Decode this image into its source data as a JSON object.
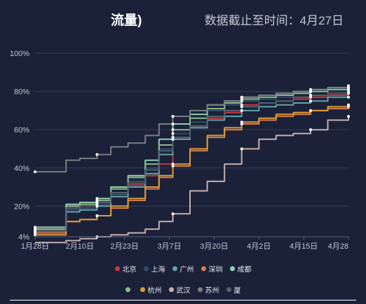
{
  "header": {
    "title": "流量)",
    "as_of": "数据截止至时间：4月27日"
  },
  "chart_data": {
    "type": "line",
    "title": "流量)",
    "ylim": [
      4,
      100
    ],
    "yticks": [
      4,
      20,
      40,
      60,
      80,
      100
    ],
    "ytick_labels": [
      "4%",
      "20%",
      "40%",
      "60%",
      "80%",
      "100%"
    ],
    "x_range": [
      "1月28日",
      "4月28日"
    ],
    "xtick_labels": [
      "1月28日",
      "2月10日",
      "2月23日",
      "3月7日",
      "3月20日",
      "4月2日",
      "4月15日",
      "4月28"
    ],
    "grid": "horizontal",
    "legend_position": "bottom",
    "x_day_points": [
      0,
      4,
      9,
      13,
      18,
      22,
      27,
      32,
      36,
      40,
      45,
      50,
      55,
      60,
      65,
      70,
      75,
      80,
      85,
      91
    ],
    "series": [
      {
        "name": "北京",
        "color": "#c8393f",
        "values": [
          8,
          8,
          20,
          21,
          22,
          27,
          31,
          36,
          42,
          55,
          61,
          66,
          69,
          73,
          74,
          75,
          76,
          77,
          78,
          79
        ]
      },
      {
        "name": "上海",
        "color": "#2d4f6a",
        "values": [
          7,
          7,
          18,
          19,
          21,
          26,
          33,
          40,
          50,
          58,
          64,
          70,
          73,
          75,
          76,
          77,
          79,
          80,
          81,
          81
        ]
      },
      {
        "name": "广州",
        "color": "#5ea3ad",
        "values": [
          7,
          7,
          17,
          18,
          20,
          25,
          30,
          37,
          47,
          55,
          61,
          65,
          67,
          70,
          72,
          73,
          74,
          75,
          77,
          77
        ]
      },
      {
        "name": "深圳",
        "color": "#d67d52",
        "values": [
          6,
          6,
          12,
          13,
          15,
          19,
          23,
          29,
          35,
          41,
          49,
          56,
          60,
          63,
          65,
          67,
          68,
          70,
          71,
          72
        ]
      },
      {
        "name": "成都",
        "color": "#8dd1b4",
        "values": [
          9,
          9,
          21,
          22,
          24,
          30,
          36,
          44,
          55,
          63,
          68,
          73,
          75,
          77,
          78,
          79,
          80,
          81,
          82,
          82
        ]
      },
      {
        "name": "",
        "color": "#8cba8c",
        "values": [
          8,
          8,
          20,
          21,
          23,
          29,
          35,
          42,
          52,
          60,
          66,
          71,
          74,
          76,
          77,
          78,
          79,
          80,
          81,
          82
        ]
      },
      {
        "name": "杭州",
        "color": "#e09b35",
        "values": [
          5,
          5,
          12,
          13,
          15,
          20,
          24,
          30,
          36,
          42,
          50,
          57,
          61,
          64,
          66,
          68,
          69,
          70,
          72,
          73
        ]
      },
      {
        "name": "武汉",
        "color": "#c7b0ad",
        "values": [
          1,
          1,
          2,
          3,
          4,
          5,
          6,
          8,
          12,
          16,
          28,
          33,
          42,
          50,
          55,
          57,
          58,
          60,
          65,
          67
        ]
      },
      {
        "name": "苏州",
        "color": "#7b7e82",
        "values": [
          38,
          38,
          44,
          45,
          47,
          51,
          53,
          57,
          63,
          67,
          70,
          73,
          75,
          77,
          78,
          79,
          80,
          81,
          82,
          83
        ]
      },
      {
        "name": "厦",
        "color": "#55606b",
        "values": [
          7,
          7,
          19,
          20,
          22,
          27,
          32,
          39,
          49,
          56,
          62,
          67,
          70,
          72,
          74,
          75,
          77,
          78,
          79,
          80
        ]
      }
    ]
  },
  "legend": {
    "row1": [
      "北京",
      "上海",
      "广州",
      "深圳",
      "成都"
    ],
    "row2": [
      "",
      "杭州",
      "武汉",
      "苏州",
      "厦"
    ]
  }
}
